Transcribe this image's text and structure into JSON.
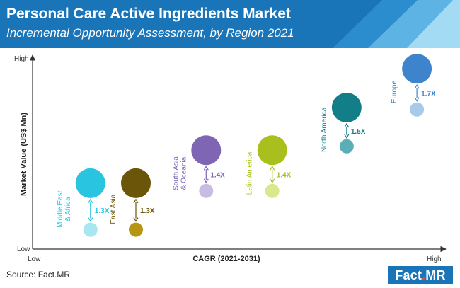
{
  "header": {
    "title": "Personal Care Active Ingredients Market",
    "subtitle": "Incremental Opportunity Assessment, by Region 2021"
  },
  "footer": {
    "source": "Source: Fact.MR",
    "logo_left": "Fact",
    "logo_dot": ".",
    "logo_right": "MR"
  },
  "chart_data": {
    "type": "bubble",
    "xlabel": "CAGR (2021-2031)",
    "ylabel": "Market Value (US$ Mn)",
    "x_tick_labels": {
      "low": "Low",
      "high": "High"
    },
    "y_tick_labels": {
      "low": "Low",
      "high": "High"
    },
    "grid": false,
    "series": [
      {
        "name": "Middle East\n& Africa",
        "x": 0.14,
        "y_2021": 0.34,
        "y_2031": 0.1,
        "multiplier": "1.3X",
        "color": "#29c4e0",
        "color_light": "#a8e6f2"
      },
      {
        "name": "East Asia",
        "x": 0.25,
        "y_2021": 0.34,
        "y_2031": 0.1,
        "multiplier": "1.3X",
        "color": "#6b5508",
        "color_light": "#b59512"
      },
      {
        "name": "South Asia\n& Oceania",
        "x": 0.42,
        "y_2021": 0.51,
        "y_2031": 0.3,
        "multiplier": "1.4X",
        "color": "#7e66b5",
        "color_light": "#c8bde0"
      },
      {
        "name": "Latin America",
        "x": 0.58,
        "y_2021": 0.51,
        "y_2031": 0.3,
        "multiplier": "1.4X",
        "color": "#a8bf1e",
        "color_light": "#dbe78c"
      },
      {
        "name": "North America",
        "x": 0.76,
        "y_2021": 0.73,
        "y_2031": 0.53,
        "multiplier": "1.5X",
        "color": "#127e88",
        "color_light": "#5aaeb6"
      },
      {
        "name": "Europe",
        "x": 0.93,
        "y_2021": 0.93,
        "y_2031": 0.72,
        "multiplier": "1.7X",
        "color": "#3d84cc",
        "color_light": "#a9c9ea"
      }
    ]
  }
}
